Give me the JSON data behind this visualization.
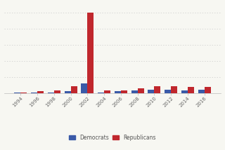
{
  "years": [
    1994,
    1996,
    1998,
    2000,
    2002,
    2004,
    2006,
    2008,
    2010,
    2012,
    2014,
    2016
  ],
  "democrats": [
    0.5,
    0.5,
    0.8,
    2.5,
    12,
    1.0,
    2.0,
    3.5,
    4.5,
    4.0,
    3.5,
    4.0
  ],
  "republicans": [
    1.0,
    2.0,
    3.5,
    8.0,
    100,
    3.5,
    3.5,
    6.0,
    8.5,
    8.5,
    7.5,
    7.5
  ],
  "dem_color": "#3a5aa8",
  "rep_color": "#c0272d",
  "background_color": "#f7f7f2",
  "grid_color": "#c8c8c8",
  "legend_dem": "Democrats",
  "legend_rep": "Republicans",
  "bar_width": 0.38,
  "ylim": [
    0,
    110
  ],
  "yticks": [
    0,
    20,
    40,
    60,
    80,
    100
  ],
  "figsize": [
    3.2,
    2.14
  ],
  "dpi": 100
}
